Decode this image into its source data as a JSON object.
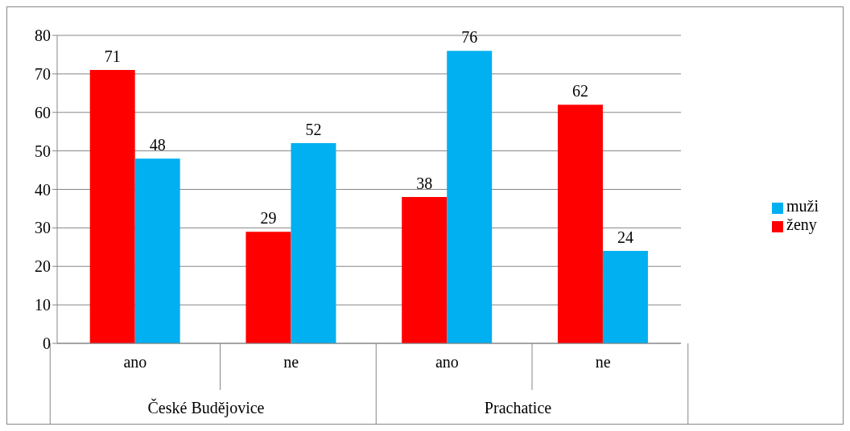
{
  "chart_data": {
    "type": "bar",
    "categories": [
      "ano",
      "ne",
      "ano",
      "ne"
    ],
    "series": [
      {
        "name": "ženy",
        "color": "#ff0000",
        "values": [
          71,
          29,
          38,
          62
        ]
      },
      {
        "name": "muži",
        "color": "#00b0f0",
        "values": [
          48,
          52,
          76,
          24
        ]
      }
    ],
    "annotations": [
      "České Budějovice",
      "Prachatice"
    ],
    "ylim": [
      0,
      80
    ],
    "yticks": [
      0,
      10,
      20,
      30,
      40,
      50,
      60,
      70,
      80
    ],
    "grid": "y",
    "legend": "right",
    "data_labels": true
  }
}
